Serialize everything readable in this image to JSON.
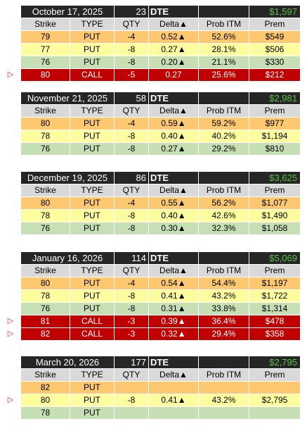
{
  "columns": [
    "Strike",
    "TYPE",
    "QTY",
    "Delta▲",
    "Prob ITM",
    "Prem"
  ],
  "blocks": [
    {
      "date": "October 17, 2025",
      "dte": "23",
      "dte_label": "DTE",
      "total": "$1,597",
      "rows": [
        {
          "strike": "79",
          "type": "PUT",
          "qty": "-4",
          "delta": "0.52▲",
          "prob_itm": "52.6%",
          "prem": "$549",
          "fill": "#fdc870"
        },
        {
          "strike": "77",
          "type": "PUT",
          "qty": "-8",
          "delta": "0.27▲",
          "prob_itm": "28.1%",
          "prem": "$506",
          "fill": "#fdfd9f"
        },
        {
          "strike": "76",
          "type": "PUT",
          "qty": "-8",
          "delta": "0.20▲",
          "prob_itm": "21.1%",
          "prem": "$330",
          "fill": "#c6dfb4"
        },
        {
          "marker": "▷",
          "strike": "80",
          "type": "CALL",
          "qty": "-5",
          "delta": "0.27",
          "prob_itm": "25.6%",
          "prem": "$212",
          "fill": "#c00000"
        }
      ]
    },
    {
      "date": "November 21, 2025",
      "dte": "58",
      "dte_label": "DTE",
      "total": "$2,981",
      "rows": [
        {
          "strike": "80",
          "type": "PUT",
          "qty": "-4",
          "delta": "0.59▲",
          "prob_itm": "59.2%",
          "prem": "$977",
          "fill": "#fdc870"
        },
        {
          "strike": "78",
          "type": "PUT",
          "qty": "-8",
          "delta": "0.40▲",
          "prob_itm": "40.2%",
          "prem": "$1,194",
          "fill": "#fdfd9f"
        },
        {
          "strike": "76",
          "type": "PUT",
          "qty": "-8",
          "delta": "0.27▲",
          "prob_itm": "29.2%",
          "prem": "$810",
          "fill": "#c6dfb4"
        }
      ]
    },
    {
      "date": "December 19, 2025",
      "dte": "86",
      "dte_label": "DTE",
      "total": "$3,625",
      "rows": [
        {
          "strike": "80",
          "type": "PUT",
          "qty": "-4",
          "delta": "0.55▲",
          "prob_itm": "56.2%",
          "prem": "$1,077",
          "fill": "#fdc870"
        },
        {
          "strike": "78",
          "type": "PUT",
          "qty": "-8",
          "delta": "0.40▲",
          "prob_itm": "42.6%",
          "prem": "$1,490",
          "fill": "#fdfd9f"
        },
        {
          "strike": "76",
          "type": "PUT",
          "qty": "-8",
          "delta": "0.30▲",
          "prob_itm": "32.3%",
          "prem": "$1,058",
          "fill": "#c6dfb4"
        }
      ]
    },
    {
      "date": "January 16, 2026",
      "dte": "114",
      "dte_label": "DTE",
      "total": "$5,069",
      "rows": [
        {
          "strike": "80",
          "type": "PUT",
          "qty": "-4",
          "delta": "0.54▲",
          "prob_itm": "54.4%",
          "prem": "$1,197",
          "fill": "#fdc870"
        },
        {
          "strike": "78",
          "type": "PUT",
          "qty": "-8",
          "delta": "0.41▲",
          "prob_itm": "43.2%",
          "prem": "$1,722",
          "fill": "#fdfd9f"
        },
        {
          "strike": "76",
          "type": "PUT",
          "qty": "-8",
          "delta": "0.31▲",
          "prob_itm": "33.8%",
          "prem": "$1,314",
          "fill": "#c6dfb4"
        },
        {
          "marker": "▷",
          "strike": "81",
          "type": "CALL",
          "qty": "-3",
          "delta": "0.39▲",
          "prob_itm": "36.4%",
          "prem": "$478",
          "fill": "#c00000"
        },
        {
          "marker": "▷",
          "strike": "82",
          "type": "CALL",
          "qty": "-3",
          "delta": "0.32▲",
          "prob_itm": "29.4%",
          "prem": "$358",
          "fill": "#c00000"
        }
      ]
    },
    {
      "date": "March 20, 2026",
      "dte": "177",
      "dte_label": "DTE",
      "total": "$2,795",
      "rows": [
        {
          "strike": "82",
          "type": "PUT",
          "fill": "#fdc870"
        },
        {
          "marker": "▷",
          "strike": "80",
          "type": "PUT",
          "qty": "-8",
          "delta": "0.41▲",
          "prob_itm": "43.2%",
          "prem": "$2,795",
          "fill": "#fdfd9f"
        },
        {
          "strike": "78",
          "type": "PUT",
          "fill": "#c6dfb4"
        }
      ]
    }
  ]
}
